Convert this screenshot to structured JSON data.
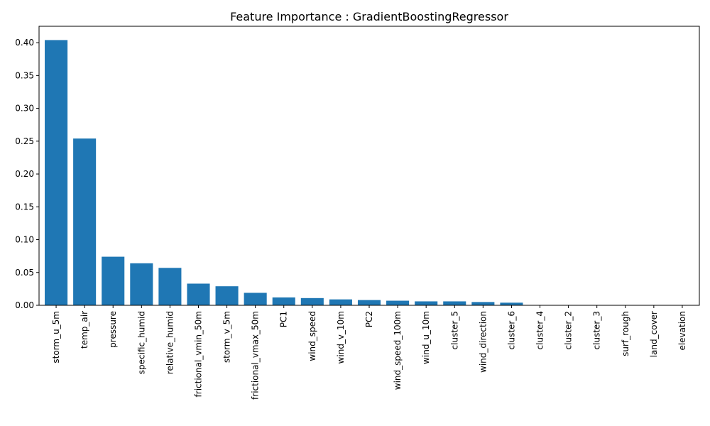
{
  "chart_data": {
    "type": "bar",
    "title": "Feature Importance : GradientBoostingRegressor",
    "xlabel": "",
    "ylabel": "",
    "categories": [
      "storm_u_5m",
      "temp_air",
      "pressure",
      "specific_humid",
      "relative_humid",
      "frictional_vmin_50m",
      "storm_v_5m",
      "frictional_vmax_50m",
      "PC1",
      "wind_speed",
      "wind_v_10m",
      "PC2",
      "wind_speed_100m",
      "wind_u_10m",
      "cluster_5",
      "wind_direction",
      "cluster_6",
      "cluster_4",
      "cluster_2",
      "cluster_3",
      "surf_rough",
      "land_cover",
      "elevation"
    ],
    "values": [
      0.404,
      0.254,
      0.074,
      0.064,
      0.057,
      0.033,
      0.029,
      0.019,
      0.012,
      0.011,
      0.009,
      0.008,
      0.007,
      0.006,
      0.006,
      0.005,
      0.004,
      0.0,
      0.0,
      0.0,
      0.0,
      0.0,
      0.0
    ],
    "ylim": [
      0,
      0.425
    ],
    "yticks": [
      "0.00",
      "0.05",
      "0.10",
      "0.15",
      "0.20",
      "0.25",
      "0.30",
      "0.35",
      "0.40"
    ],
    "grid": false,
    "bar_color": "#1f77b4"
  }
}
